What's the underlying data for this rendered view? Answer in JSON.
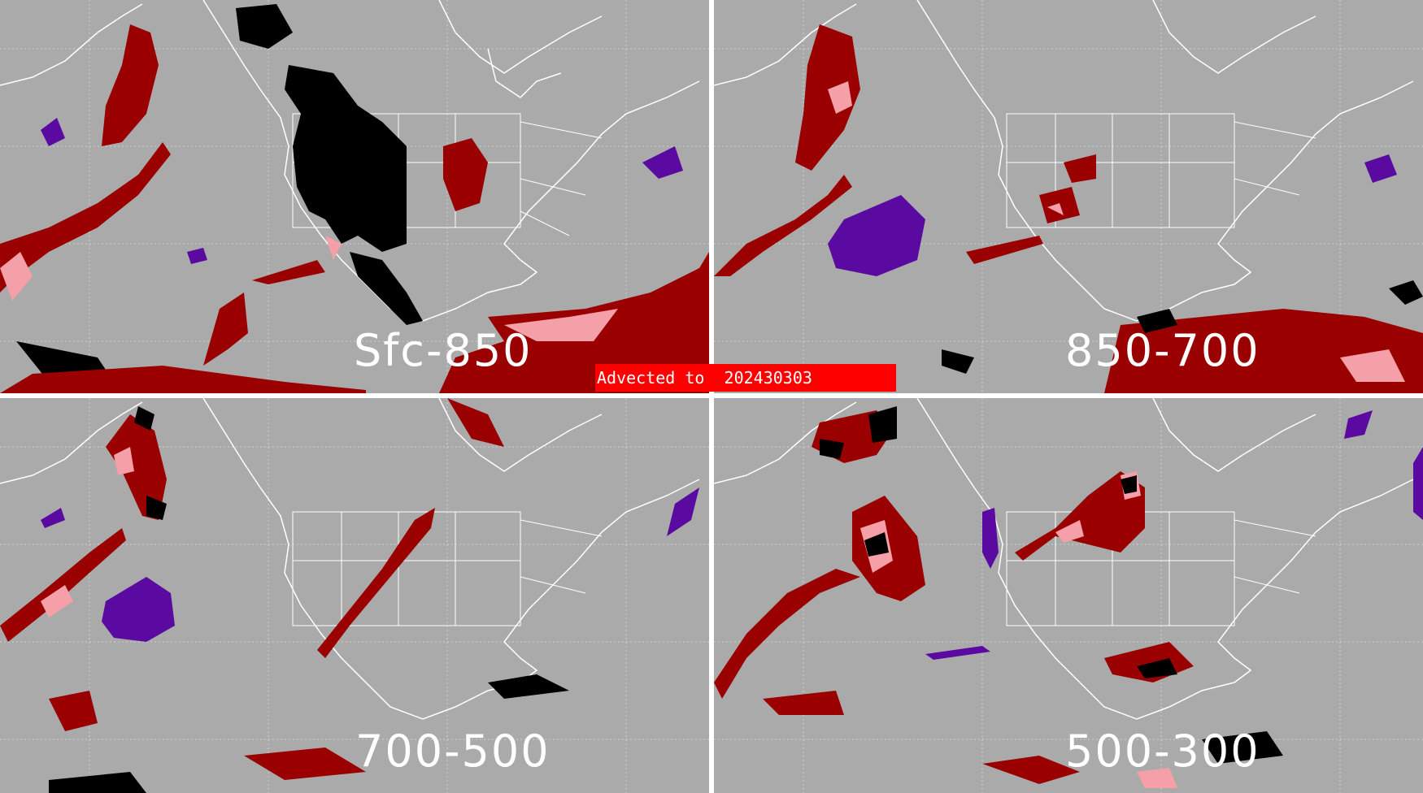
{
  "banner": {
    "prefix": "Advected to",
    "date": "202430303"
  },
  "panels": [
    {
      "label": "Sfc-850"
    },
    {
      "label": "850-700"
    },
    {
      "label": "700-500"
    },
    {
      "label": "500-300"
    }
  ],
  "colors": {
    "background": "#aaaaaa",
    "divider": "#ffffff",
    "coastline": "#ffffff",
    "grid": "#d4d4d4",
    "dark_red": "#9b0000",
    "pink": "#f5a0a8",
    "purple": "#5a0aa0",
    "black": "#000000",
    "banner": "#ff0000"
  }
}
